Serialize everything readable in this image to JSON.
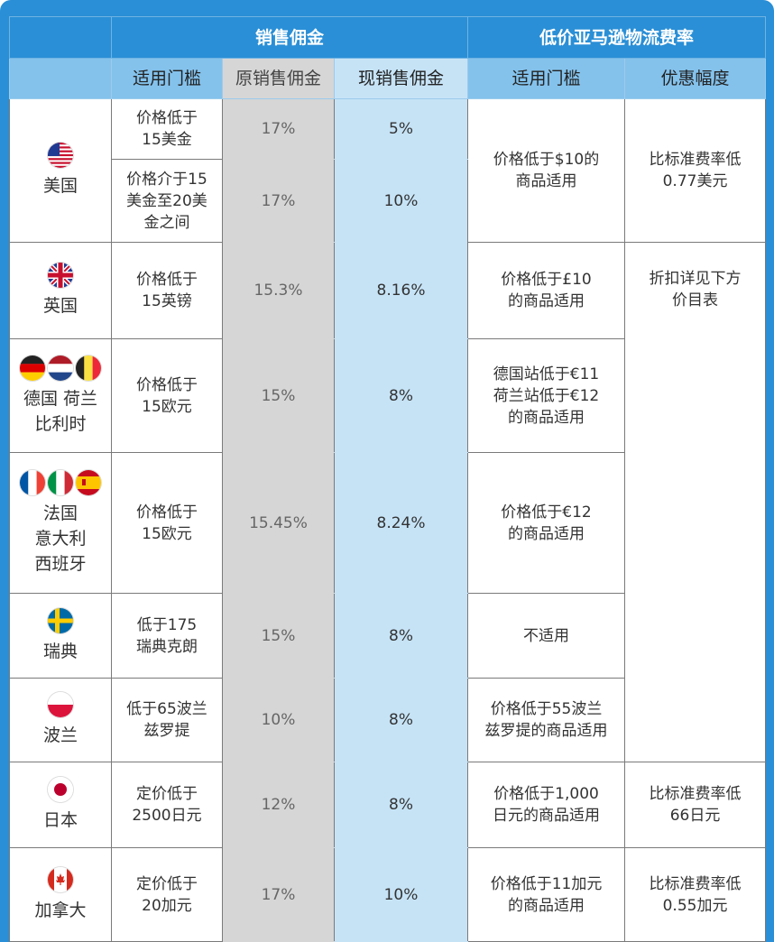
{
  "headers": {
    "commission_group": "销售佣金",
    "fba_group": "低价亚马逊物流费率",
    "col_threshold": "适用门槛",
    "col_original": "原销售佣金",
    "col_current": "现销售佣金",
    "col_fba_threshold": "适用门槛",
    "col_discount": "优惠幅度"
  },
  "rows": {
    "us": {
      "country": "美国",
      "flag": "us-flag",
      "tiers": [
        {
          "threshold": "价格低于\n15美金",
          "original": "17%",
          "current": "5%"
        },
        {
          "threshold": "价格介于15\n美金至20美\n金之间",
          "original": "17%",
          "current": "10%"
        }
      ],
      "fba_threshold": "价格低于$10的\n商品适用",
      "discount": "比标准费率低\n0.77美元"
    },
    "uk": {
      "country": "英国",
      "flag": "uk-flag",
      "threshold": "价格低于\n15英镑",
      "original": "15.3%",
      "current": "8.16%",
      "fba_threshold": "价格低于£10\n的商品适用",
      "discount": "折扣详见下方\n价目表"
    },
    "de_nl_be": {
      "country": "德国 荷兰\n比利时",
      "flags": [
        "germany-flag",
        "netherlands-flag",
        "belgium-flag"
      ],
      "threshold": "价格低于\n15欧元",
      "original": "15%",
      "current": "8%",
      "fba_threshold": "德国站低于€11\n荷兰站低于€12\n的商品适用"
    },
    "fr_it_es": {
      "country": "法国\n意大利\n西班牙",
      "flags": [
        "france-flag",
        "italy-flag",
        "spain-flag"
      ],
      "threshold": "价格低于\n15欧元",
      "original": "15.45%",
      "current": "8.24%",
      "fba_threshold": "价格低于€12\n的商品适用"
    },
    "se": {
      "country": "瑞典",
      "flag": "sweden-flag",
      "threshold": "低于175\n瑞典克朗",
      "original": "15%",
      "current": "8%",
      "fba_threshold": "不适用"
    },
    "pl": {
      "country": "波兰",
      "flag": "poland-flag",
      "threshold": "低于65波兰\n兹罗提",
      "original": "10%",
      "current": "8%",
      "fba_threshold": "价格低于55波兰\n兹罗提的商品适用"
    },
    "jp": {
      "country": "日本",
      "flag": "japan-flag",
      "threshold": "定价低于\n2500日元",
      "original": "12%",
      "current": "8%",
      "fba_threshold": "价格低于1,000\n日元的商品适用",
      "discount": "比标准费率低\n66日元"
    },
    "ca": {
      "country": "加拿大",
      "flag": "canada-flag",
      "threshold": "定价低于\n20加元",
      "original": "17%",
      "current": "10%",
      "fba_threshold": "价格低于11加元\n的商品适用",
      "discount": "比标准费率低\n0.55加元"
    }
  },
  "colors": {
    "header_blue": "#2a8fd6",
    "subheader_blue": "#84c2ec",
    "original_gray": "#d6d6d6",
    "current_blue": "#c6e3f6"
  }
}
